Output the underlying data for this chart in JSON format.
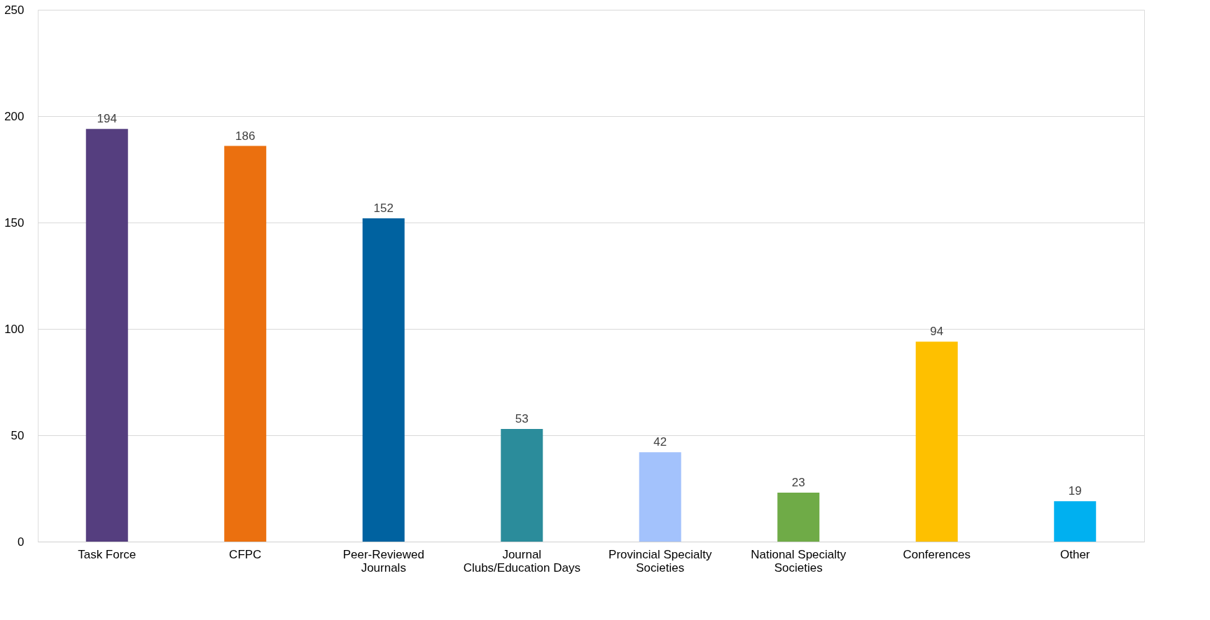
{
  "chart_data": {
    "type": "bar",
    "categories": [
      "Task Force",
      "CFPC",
      "Peer-Reviewed Journals",
      "Journal Clubs/Education Days",
      "Provincial Specialty Societies",
      "National Specialty Societies",
      "Conferences",
      "Other"
    ],
    "values": [
      194,
      186,
      152,
      53,
      42,
      23,
      94,
      19
    ],
    "colors": [
      "#553e7f",
      "#eb700f",
      "#0062a0",
      "#2b8c9b",
      "#a3c2fc",
      "#6fab47",
      "#fec000",
      "#00b0f0"
    ],
    "ylim": [
      0,
      250
    ],
    "yticks": [
      0,
      50,
      100,
      150,
      200,
      250
    ],
    "grid": "y",
    "data_labels": true
  }
}
